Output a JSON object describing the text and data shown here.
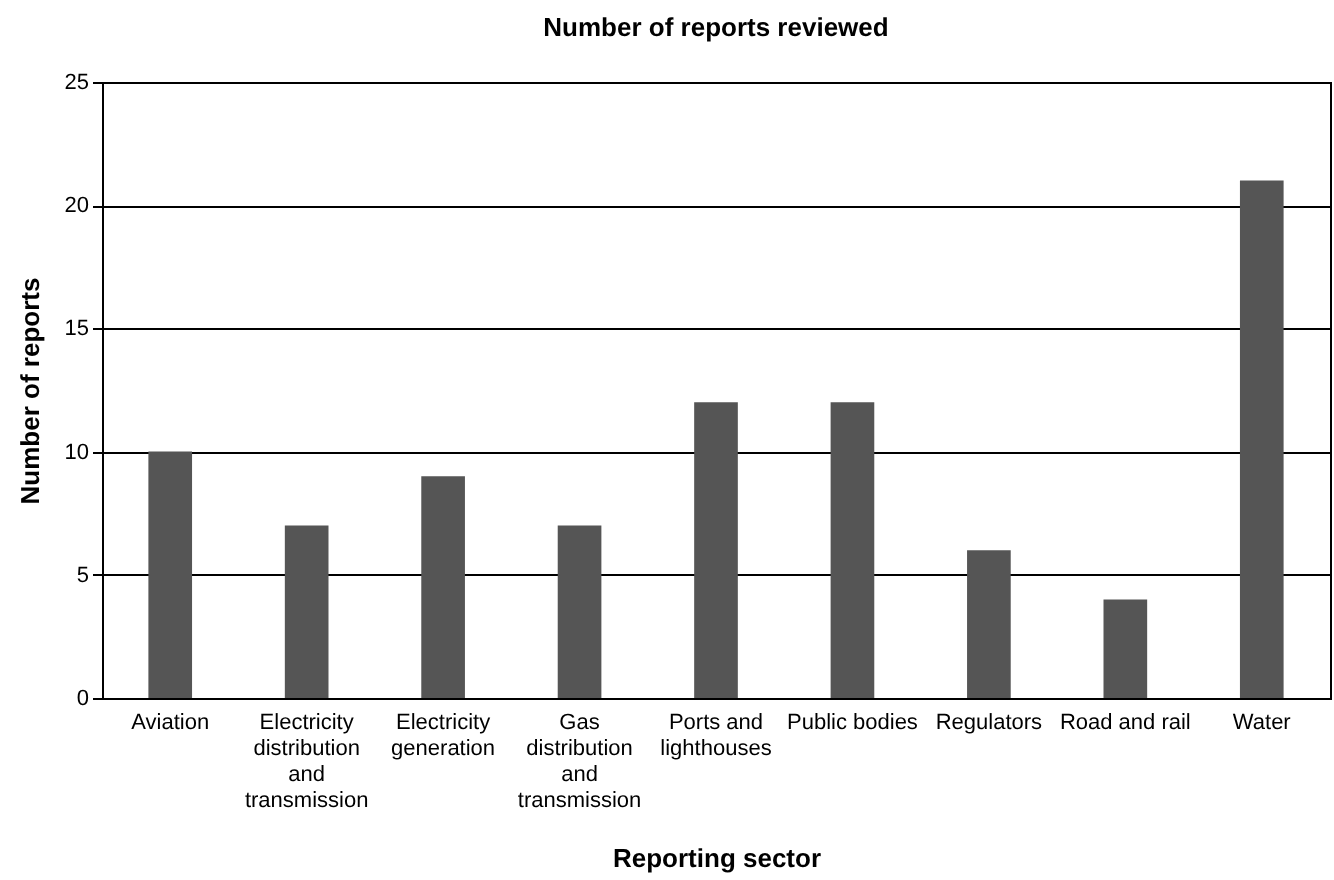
{
  "chart_data": {
    "type": "bar",
    "title": "Number of reports reviewed",
    "xlabel": "Reporting sector",
    "ylabel": "Number of reports",
    "categories": [
      "Aviation",
      "Electricity distribution and transmission",
      "Electricity generation",
      "Gas distribution and transmission",
      "Ports and lighthouses",
      "Public bodies",
      "Regulators",
      "Road and rail",
      "Water"
    ],
    "values": [
      10,
      7,
      9,
      7,
      12,
      12,
      6,
      4,
      21
    ],
    "color": "#555555",
    "ylim": [
      0,
      25
    ],
    "yticks": [
      0,
      5,
      10,
      15,
      20,
      25
    ],
    "grid": "y"
  }
}
